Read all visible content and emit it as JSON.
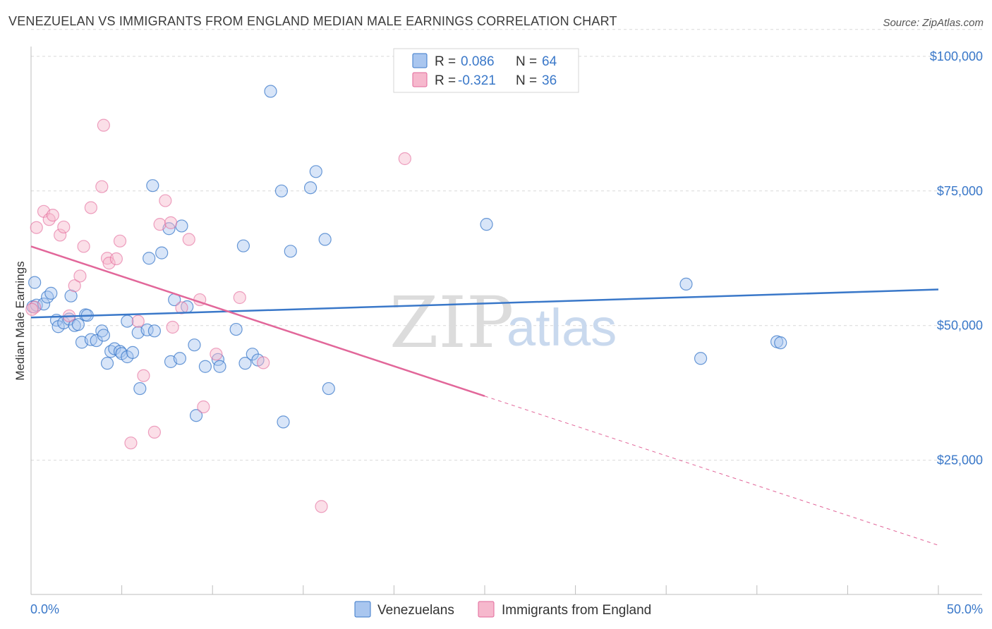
{
  "title": "VENEZUELAN VS IMMIGRANTS FROM ENGLAND MEDIAN MALE EARNINGS CORRELATION CHART",
  "source": "Source: ZipAtlas.com",
  "watermark": {
    "zip": "ZIP",
    "atlas": "atlas"
  },
  "colors": {
    "blue": "#3a78c9",
    "blue_fill": "#a9c6ef",
    "pink": "#e2679a",
    "pink_fill": "#f6b8cd",
    "grid": "#d9d9d9"
  },
  "legend": {
    "rows": [
      {
        "r_label": "R =",
        "r_value": "0.086",
        "n_label": "N =",
        "n_value": "64"
      },
      {
        "r_label": "R =",
        "r_value": "-0.321",
        "n_label": "N =",
        "n_value": "36"
      }
    ]
  },
  "chart_data": {
    "type": "scatter",
    "title": "VENEZUELAN VS IMMIGRANTS FROM ENGLAND MEDIAN MALE EARNINGS CORRELATION CHART",
    "xlabel": "",
    "ylabel": "Median Male Earnings",
    "xlim": [
      0,
      50
    ],
    "ylim": [
      0,
      105000
    ],
    "x_tick_labels": [
      "0.0%",
      "50.0%"
    ],
    "y_ticks": [
      25000,
      50000,
      75000,
      100000
    ],
    "y_tick_labels": [
      "$25,000",
      "$50,000",
      "$75,000",
      "$100,000"
    ],
    "grid": true,
    "legend_position": "top-center",
    "series": [
      {
        "name": "Venezuelans",
        "color": "#3a78c9",
        "trend": {
          "x": [
            0,
            50
          ],
          "y": [
            51500,
            56700
          ],
          "style": "solid"
        },
        "points": [
          [
            0.1,
            53500
          ],
          [
            0.2,
            58000
          ],
          [
            0.3,
            53800
          ],
          [
            0.7,
            54000
          ],
          [
            0.9,
            55300
          ],
          [
            1.1,
            56000
          ],
          [
            1.4,
            51000
          ],
          [
            1.5,
            49800
          ],
          [
            1.8,
            50500
          ],
          [
            2.1,
            51200
          ],
          [
            2.2,
            55500
          ],
          [
            2.4,
            50000
          ],
          [
            2.6,
            50200
          ],
          [
            2.8,
            46900
          ],
          [
            3.0,
            52000
          ],
          [
            3.1,
            51900
          ],
          [
            3.3,
            47400
          ],
          [
            3.6,
            47200
          ],
          [
            3.9,
            49000
          ],
          [
            4.0,
            48200
          ],
          [
            4.2,
            43000
          ],
          [
            4.4,
            45200
          ],
          [
            4.6,
            45700
          ],
          [
            4.9,
            45200
          ],
          [
            5.0,
            44800
          ],
          [
            5.3,
            44200
          ],
          [
            5.3,
            50800
          ],
          [
            5.6,
            45000
          ],
          [
            5.9,
            48700
          ],
          [
            6.0,
            38300
          ],
          [
            6.4,
            49200
          ],
          [
            6.5,
            62500
          ],
          [
            6.7,
            76000
          ],
          [
            6.8,
            49000
          ],
          [
            7.2,
            63500
          ],
          [
            7.6,
            68000
          ],
          [
            7.7,
            43300
          ],
          [
            7.9,
            54800
          ],
          [
            8.2,
            43900
          ],
          [
            8.3,
            68500
          ],
          [
            8.6,
            53500
          ],
          [
            9.0,
            46400
          ],
          [
            9.1,
            33300
          ],
          [
            9.6,
            42400
          ],
          [
            10.3,
            43700
          ],
          [
            10.4,
            42400
          ],
          [
            11.3,
            49300
          ],
          [
            11.7,
            64800
          ],
          [
            11.8,
            43000
          ],
          [
            12.2,
            44700
          ],
          [
            12.5,
            43600
          ],
          [
            13.2,
            93500
          ],
          [
            13.8,
            75000
          ],
          [
            13.9,
            32100
          ],
          [
            14.3,
            63800
          ],
          [
            15.4,
            75600
          ],
          [
            15.7,
            78600
          ],
          [
            16.2,
            66000
          ],
          [
            16.4,
            38300
          ],
          [
            25.1,
            68800
          ],
          [
            36.1,
            57700
          ],
          [
            36.9,
            43900
          ],
          [
            41.1,
            47000
          ],
          [
            41.3,
            46800
          ]
        ]
      },
      {
        "name": "Immigrants from England",
        "color": "#e2679a",
        "trend": {
          "x": [
            0,
            25
          ],
          "y": [
            64700,
            36900
          ],
          "dashed_x": [
            25,
            50
          ],
          "dashed_y": [
            36900,
            9200
          ]
        },
        "points": [
          [
            0.2,
            53400
          ],
          [
            0.3,
            68200
          ],
          [
            0.7,
            71200
          ],
          [
            1.0,
            69700
          ],
          [
            1.2,
            70500
          ],
          [
            1.6,
            66800
          ],
          [
            1.8,
            68300
          ],
          [
            2.1,
            51800
          ],
          [
            2.4,
            57400
          ],
          [
            2.7,
            59200
          ],
          [
            2.9,
            64700
          ],
          [
            3.3,
            71900
          ],
          [
            3.9,
            75800
          ],
          [
            4.0,
            87200
          ],
          [
            4.2,
            62500
          ],
          [
            4.3,
            61600
          ],
          [
            4.7,
            62400
          ],
          [
            4.9,
            65700
          ],
          [
            5.5,
            28200
          ],
          [
            5.9,
            50800
          ],
          [
            6.2,
            40700
          ],
          [
            6.8,
            30200
          ],
          [
            7.1,
            68800
          ],
          [
            7.4,
            73200
          ],
          [
            7.7,
            69100
          ],
          [
            7.8,
            49700
          ],
          [
            8.3,
            53300
          ],
          [
            8.7,
            66000
          ],
          [
            9.3,
            54800
          ],
          [
            9.5,
            34900
          ],
          [
            10.2,
            44700
          ],
          [
            11.5,
            55200
          ],
          [
            12.8,
            43100
          ],
          [
            16.0,
            16400
          ],
          [
            20.6,
            81000
          ],
          [
            0.05,
            53000
          ]
        ]
      }
    ]
  }
}
